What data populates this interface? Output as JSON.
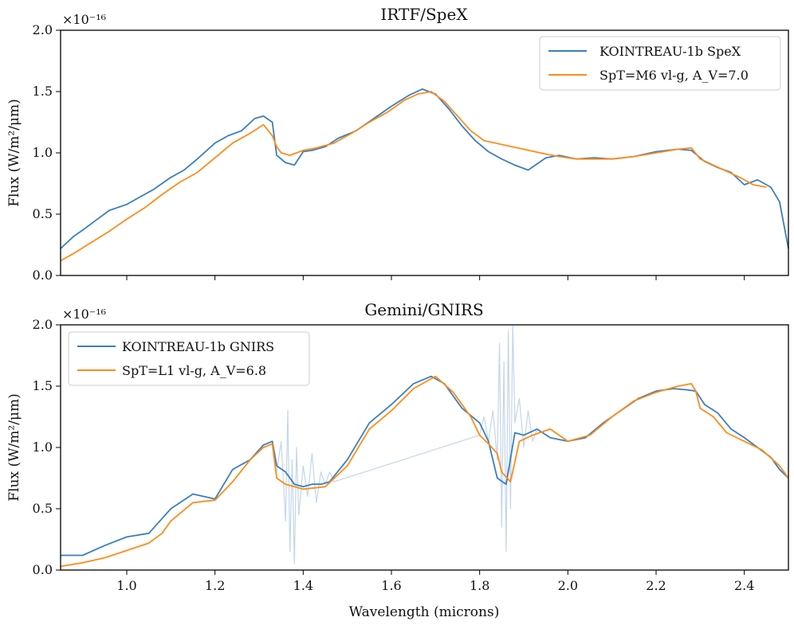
{
  "chart_data": [
    {
      "type": "line",
      "title": "IRTF/SpeX",
      "xlabel": "",
      "ylabel": "Flux (W/m²/μm)",
      "multiplier": "×10⁻¹⁶",
      "xlim": [
        0.85,
        2.5
      ],
      "ylim": [
        0.0,
        2.0
      ],
      "yticks": [
        "0.0",
        "0.5",
        "1.0",
        "1.5",
        "2.0"
      ],
      "xticks": [
        1.0,
        1.2,
        1.4,
        1.6,
        1.8,
        2.0,
        2.2,
        2.4
      ],
      "grid": false,
      "legend_position": "top-right",
      "series": [
        {
          "name": "KOINTREAU-1b SpeX",
          "color": "#3a7fbf",
          "x": [
            0.85,
            0.88,
            0.9,
            0.93,
            0.96,
            1.0,
            1.03,
            1.06,
            1.1,
            1.13,
            1.16,
            1.2,
            1.23,
            1.26,
            1.29,
            1.31,
            1.33,
            1.34,
            1.36,
            1.38,
            1.4,
            1.42,
            1.45,
            1.48,
            1.52,
            1.56,
            1.6,
            1.64,
            1.67,
            1.7,
            1.73,
            1.76,
            1.79,
            1.82,
            1.85,
            1.88,
            1.91,
            1.95,
            1.98,
            2.02,
            2.06,
            2.1,
            2.15,
            2.2,
            2.25,
            2.28,
            2.31,
            2.34,
            2.37,
            2.4,
            2.43,
            2.46,
            2.48,
            2.5
          ],
          "y": [
            0.22,
            0.32,
            0.37,
            0.45,
            0.53,
            0.58,
            0.64,
            0.7,
            0.8,
            0.86,
            0.95,
            1.08,
            1.14,
            1.18,
            1.28,
            1.3,
            1.25,
            0.98,
            0.92,
            0.9,
            1.01,
            1.02,
            1.05,
            1.12,
            1.18,
            1.28,
            1.38,
            1.47,
            1.52,
            1.48,
            1.36,
            1.22,
            1.1,
            1.01,
            0.95,
            0.9,
            0.86,
            0.96,
            0.98,
            0.95,
            0.96,
            0.95,
            0.97,
            1.01,
            1.03,
            1.02,
            0.93,
            0.88,
            0.84,
            0.74,
            0.78,
            0.72,
            0.6,
            0.22
          ]
        },
        {
          "name": "SpT=M6 vl-g, A_V=7.0",
          "color": "#ff8c1a",
          "x": [
            0.85,
            0.88,
            0.92,
            0.96,
            1.0,
            1.04,
            1.08,
            1.12,
            1.16,
            1.2,
            1.24,
            1.28,
            1.31,
            1.33,
            1.34,
            1.35,
            1.37,
            1.4,
            1.43,
            1.47,
            1.51,
            1.55,
            1.59,
            1.63,
            1.66,
            1.69,
            1.72,
            1.75,
            1.78,
            1.81,
            1.95,
            1.98,
            2.02,
            2.06,
            2.1,
            2.15,
            2.2,
            2.25,
            2.28,
            2.3,
            2.33,
            2.36,
            2.39,
            2.42,
            2.45
          ],
          "y": [
            0.12,
            0.18,
            0.27,
            0.36,
            0.46,
            0.55,
            0.66,
            0.76,
            0.84,
            0.96,
            1.08,
            1.16,
            1.23,
            1.14,
            1.05,
            1.0,
            0.98,
            1.02,
            1.04,
            1.08,
            1.16,
            1.25,
            1.33,
            1.43,
            1.48,
            1.5,
            1.42,
            1.3,
            1.18,
            1.1,
            0.99,
            0.97,
            0.95,
            0.95,
            0.95,
            0.97,
            1.0,
            1.03,
            1.04,
            0.95,
            0.9,
            0.85,
            0.8,
            0.74,
            0.72
          ]
        }
      ]
    },
    {
      "type": "line",
      "title": "Gemini/GNIRS",
      "xlabel": "Wavelength (microns)",
      "ylabel": "Flux (W/m²/μm)",
      "multiplier": "×10⁻¹⁶",
      "xlim": [
        0.85,
        2.5
      ],
      "ylim": [
        0.0,
        2.0
      ],
      "yticks": [
        "0.0",
        "0.5",
        "1.0",
        "1.5",
        "2.0"
      ],
      "xticks": [
        "1.0",
        "1.2",
        "1.4",
        "1.6",
        "1.8",
        "2.0",
        "2.2",
        "2.4"
      ],
      "grid": false,
      "legend_position": "top-left",
      "series": [
        {
          "name": "KOINTREAU-1b GNIRS",
          "color": "#3a7fbf",
          "x": [
            0.85,
            0.9,
            0.95,
            1.0,
            1.05,
            1.1,
            1.15,
            1.2,
            1.24,
            1.28,
            1.31,
            1.33,
            1.34,
            1.36,
            1.38,
            1.4,
            1.42,
            1.44,
            1.46,
            1.5,
            1.55,
            1.6,
            1.65,
            1.69,
            1.72,
            1.76,
            1.8,
            1.82,
            1.84,
            1.86,
            1.88,
            1.9,
            1.93,
            1.96,
            2.0,
            2.04,
            2.08,
            2.12,
            2.16,
            2.2,
            2.24,
            2.27,
            2.29,
            2.31,
            2.34,
            2.37,
            2.4,
            2.43,
            2.46,
            2.48,
            2.5
          ],
          "y": [
            0.12,
            0.12,
            0.2,
            0.27,
            0.3,
            0.5,
            0.62,
            0.58,
            0.82,
            0.9,
            1.02,
            1.05,
            0.85,
            0.8,
            0.7,
            0.68,
            0.7,
            0.7,
            0.72,
            0.9,
            1.2,
            1.35,
            1.52,
            1.58,
            1.52,
            1.32,
            1.2,
            1.05,
            0.75,
            0.7,
            1.12,
            1.1,
            1.15,
            1.08,
            1.05,
            1.08,
            1.2,
            1.3,
            1.4,
            1.46,
            1.48,
            1.47,
            1.46,
            1.35,
            1.28,
            1.15,
            1.08,
            1.0,
            0.92,
            0.82,
            0.75
          ]
        },
        {
          "name": "SpT=L1 vl-g, A_V=6.8",
          "color": "#ff8c1a",
          "x": [
            0.85,
            0.9,
            0.95,
            1.0,
            1.05,
            1.08,
            1.1,
            1.15,
            1.2,
            1.24,
            1.28,
            1.31,
            1.33,
            1.34,
            1.36,
            1.38,
            1.4,
            1.45,
            1.5,
            1.55,
            1.6,
            1.65,
            1.7,
            1.74,
            1.78,
            1.8,
            1.82,
            1.84,
            1.85,
            1.87,
            1.89,
            1.92,
            1.96,
            2.0,
            2.05,
            2.1,
            2.15,
            2.2,
            2.25,
            2.28,
            2.29,
            2.3,
            2.33,
            2.36,
            2.4,
            2.44,
            2.48,
            2.5
          ],
          "y": [
            0.03,
            0.06,
            0.1,
            0.16,
            0.22,
            0.3,
            0.4,
            0.55,
            0.57,
            0.72,
            0.9,
            1.0,
            1.03,
            0.75,
            0.7,
            0.68,
            0.66,
            0.68,
            0.85,
            1.15,
            1.3,
            1.48,
            1.58,
            1.45,
            1.25,
            1.1,
            1.03,
            0.95,
            0.8,
            0.72,
            1.05,
            1.1,
            1.15,
            1.05,
            1.1,
            1.25,
            1.38,
            1.45,
            1.5,
            1.52,
            1.46,
            1.32,
            1.25,
            1.12,
            1.05,
            0.98,
            0.85,
            0.75
          ]
        },
        {
          "name": "",
          "color": "#c3d6ea",
          "x": [
            1.34,
            1.35,
            1.36,
            1.365,
            1.37,
            1.375,
            1.38,
            1.385,
            1.39,
            1.4,
            1.41,
            1.42,
            1.43,
            1.44,
            1.45,
            1.46,
            1.47,
            1.8,
            1.81,
            1.82,
            1.83,
            1.84,
            1.845,
            1.85,
            1.855,
            1.86,
            1.865,
            1.87,
            1.875,
            1.88,
            1.89,
            1.9,
            1.91,
            1.92,
            1.93
          ],
          "y": [
            0.8,
            1.05,
            0.4,
            1.3,
            0.15,
            0.9,
            0.05,
            1.0,
            0.45,
            0.85,
            0.6,
            0.95,
            0.55,
            0.8,
            0.7,
            0.8,
            0.72,
            1.1,
            1.25,
            1.05,
            1.3,
            0.9,
            1.85,
            0.35,
            1.7,
            0.15,
            1.95,
            0.5,
            2.0,
            1.2,
            1.4,
            1.0,
            1.3,
            1.05,
            1.15
          ]
        }
      ]
    }
  ],
  "legends": [
    {
      "items": [
        {
          "label": "KOINTREAU-1b SpeX",
          "color": "#3a7fbf"
        },
        {
          "label": "SpT=M6 vl-g, A_V=7.0",
          "color": "#ff8c1a"
        }
      ]
    },
    {
      "items": [
        {
          "label": "KOINTREAU-1b GNIRS",
          "color": "#3a7fbf"
        },
        {
          "label": "SpT=L1 vl-g, A_V=6.8",
          "color": "#ff8c1a"
        }
      ]
    }
  ]
}
